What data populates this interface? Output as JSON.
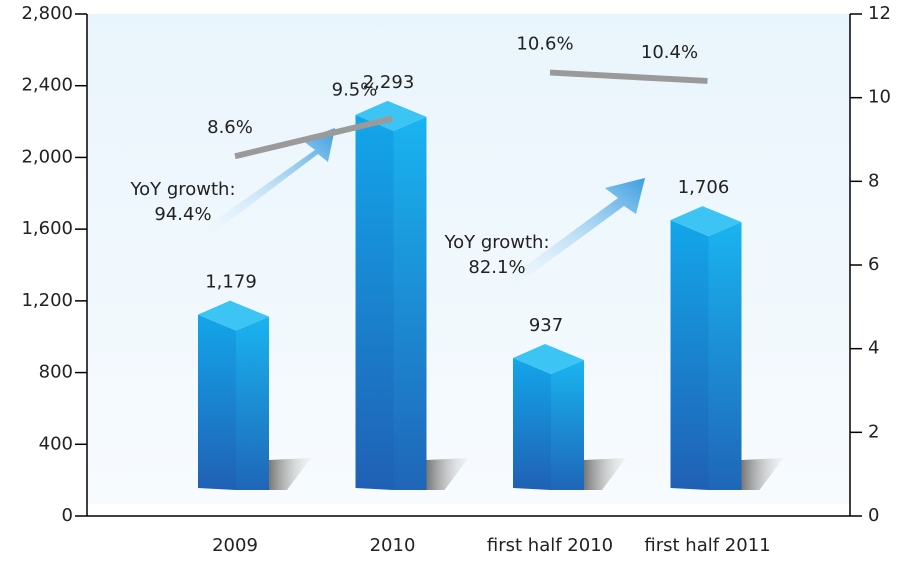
{
  "chart_data": {
    "type": "bar",
    "categories": [
      "2009",
      "2010",
      "first half 2010",
      "first half 2011"
    ],
    "series": [
      {
        "values": [
          1179,
          2293,
          937,
          1706
        ],
        "value_labels": [
          "1,179",
          "2,293",
          "937",
          "1,706"
        ],
        "color": "#1a8fd8"
      },
      {
        "values": [
          8.6,
          9.5,
          null,
          null
        ],
        "value_labels": [
          "8.6%",
          "9.5%",
          null,
          null
        ],
        "axis": "y2",
        "color": "#9a9a9a"
      },
      {
        "values": [
          null,
          null,
          10.6,
          10.4
        ],
        "value_labels": [
          null,
          null,
          "10.6%",
          "10.4%"
        ],
        "axis": "y2",
        "color": "#9a9a9a"
      }
    ],
    "annotations": [
      {
        "lines": [
          "YoY growth:",
          "94.4%"
        ]
      },
      {
        "lines": [
          "YoY growth:",
          "82.1%"
        ]
      }
    ],
    "ylim": [
      0,
      2800
    ],
    "yticks": [
      0,
      400,
      800,
      {
        "value": 1200,
        "label": "1,200"
      },
      {
        "value": 1600,
        "label": "1,600"
      },
      {
        "value": 2000,
        "label": "2,000"
      },
      {
        "value": 2400,
        "label": "2,400"
      },
      {
        "value": 2800,
        "label": "2,800"
      }
    ],
    "y2lim": [
      0,
      12
    ],
    "y2ticks": [
      0,
      2,
      4,
      6,
      8,
      10,
      12
    ]
  }
}
